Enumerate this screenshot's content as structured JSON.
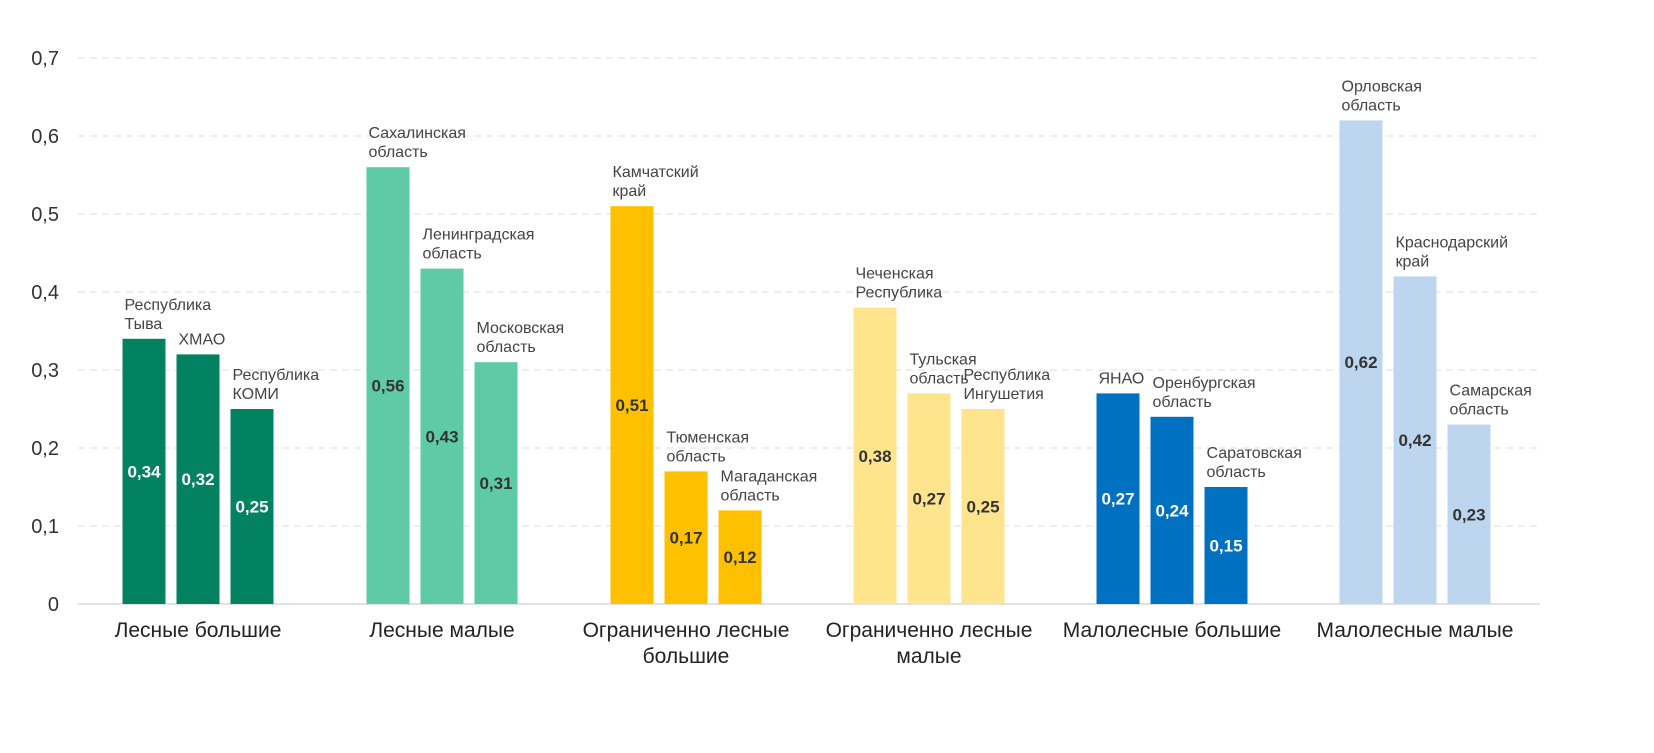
{
  "chart_data": {
    "type": "bar",
    "title": "",
    "xlabel": "",
    "ylabel": "",
    "ylim": [
      0,
      0.7
    ],
    "yticks": [
      {
        "value": 0,
        "label": "0"
      },
      {
        "value": 0.1,
        "label": "0,1"
      },
      {
        "value": 0.2,
        "label": "0,2"
      },
      {
        "value": 0.3,
        "label": "0,3"
      },
      {
        "value": 0.4,
        "label": "0,4"
      },
      {
        "value": 0.5,
        "label": "0,5"
      },
      {
        "value": 0.6,
        "label": "0,6"
      },
      {
        "value": 0.7,
        "label": "0,7"
      }
    ],
    "grid": true,
    "groups": [
      {
        "name": [
          "Лесные большие"
        ],
        "color": "#038262",
        "value_color": "#ffffff",
        "bars": [
          {
            "name": [
              "Республика",
              "Тыва"
            ],
            "value": 0.34,
            "label": "0,34"
          },
          {
            "name": [
              "ХМАО"
            ],
            "value": 0.32,
            "label": "0,32"
          },
          {
            "name": [
              "Республика",
              "КОМИ"
            ],
            "value": 0.25,
            "label": "0,25"
          }
        ]
      },
      {
        "name": [
          "Лесные малые"
        ],
        "color": "#5ECBA6",
        "value_color": "#333333",
        "bars": [
          {
            "name": [
              "Сахалинская",
              "область"
            ],
            "value": 0.56,
            "label": "0,56"
          },
          {
            "name": [
              "Ленинградская",
              "область"
            ],
            "value": 0.43,
            "label": "0,43"
          },
          {
            "name": [
              "Московская",
              "область"
            ],
            "value": 0.31,
            "label": "0,31"
          }
        ]
      },
      {
        "name": [
          "Ограниченно лесные",
          "большие"
        ],
        "color": "#FFC000",
        "value_color": "#333333",
        "bars": [
          {
            "name": [
              "Камчатский",
              "край"
            ],
            "value": 0.51,
            "label": "0,51"
          },
          {
            "name": [
              "Тюменская",
              "область"
            ],
            "value": 0.17,
            "label": "0,17"
          },
          {
            "name": [
              "Магаданская",
              "область"
            ],
            "value": 0.12,
            "label": "0,12"
          }
        ]
      },
      {
        "name": [
          "Ограниченно лесные",
          "малые"
        ],
        "color": "#FFE48E",
        "value_color": "#333333",
        "bars": [
          {
            "name": [
              "Чеченская",
              "Республика"
            ],
            "value": 0.38,
            "label": "0,38"
          },
          {
            "name": [
              "Тульская",
              "область"
            ],
            "value": 0.27,
            "label": "0,27"
          },
          {
            "name": [
              "Республика",
              "Ингушетия"
            ],
            "value": 0.25,
            "label": "0,25"
          }
        ]
      },
      {
        "name": [
          "Малолесные большие"
        ],
        "color": "#0070C0",
        "value_color": "#ffffff",
        "bars": [
          {
            "name": [
              "ЯНАО"
            ],
            "value": 0.27,
            "label": "0,27"
          },
          {
            "name": [
              "Оренбургская",
              "область"
            ],
            "value": 0.24,
            "label": "0,24"
          },
          {
            "name": [
              "Саратовская",
              "область"
            ],
            "value": 0.15,
            "label": "0,15"
          }
        ]
      },
      {
        "name": [
          "Малолесные малые"
        ],
        "color": "#BDD5EE",
        "value_color": "#333333",
        "bars": [
          {
            "name": [
              "Орловская",
              "область"
            ],
            "value": 0.62,
            "label": "0,62"
          },
          {
            "name": [
              "Краснодарский",
              "край"
            ],
            "value": 0.42,
            "label": "0,42"
          },
          {
            "name": [
              "Самарская",
              "область"
            ],
            "value": 0.23,
            "label": "0,23"
          }
        ]
      }
    ]
  }
}
